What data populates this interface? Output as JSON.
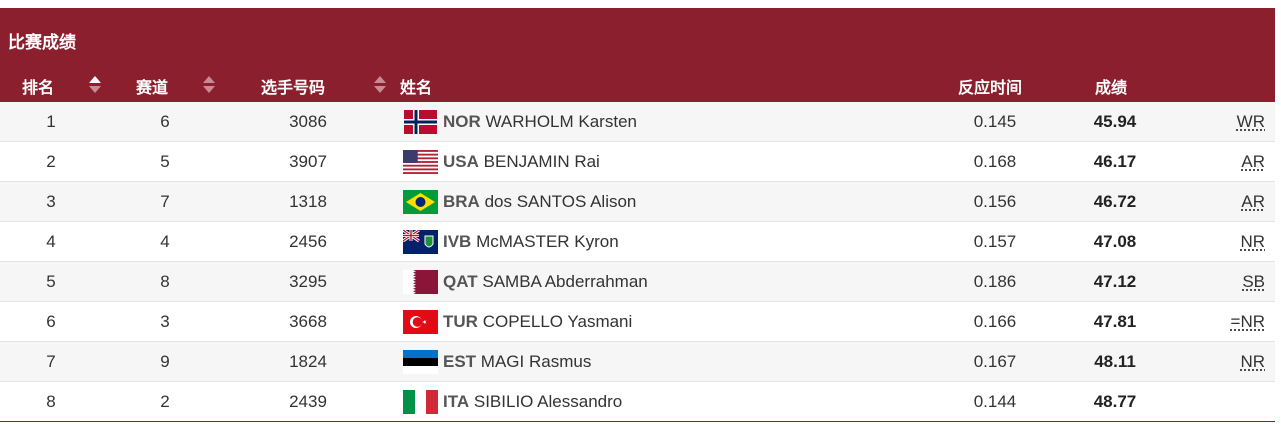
{
  "title": "比赛成绩",
  "columns": {
    "rank": "排名",
    "lane": "赛道",
    "bib": "选手号码",
    "name": "姓名",
    "reaction": "反应时间",
    "result": "成绩"
  },
  "colors": {
    "header_bg": "#8b1f2d",
    "row_alt_bg": "#f6f6f6"
  },
  "rows": [
    {
      "rank": "1",
      "lane": "6",
      "bib": "3086",
      "flag": "norway-flag",
      "country": "NOR",
      "athlete": "WARHOLM Karsten",
      "reaction": "0.145",
      "result": "45.94",
      "record": "WR"
    },
    {
      "rank": "2",
      "lane": "5",
      "bib": "3907",
      "flag": "usa-flag",
      "country": "USA",
      "athlete": "BENJAMIN Rai",
      "reaction": "0.168",
      "result": "46.17",
      "record": "AR"
    },
    {
      "rank": "3",
      "lane": "7",
      "bib": "1318",
      "flag": "brazil-flag",
      "country": "BRA",
      "athlete": "dos SANTOS Alison",
      "reaction": "0.156",
      "result": "46.72",
      "record": "AR"
    },
    {
      "rank": "4",
      "lane": "4",
      "bib": "2456",
      "flag": "british-virgin-islands-flag",
      "country": "IVB",
      "athlete": "McMASTER Kyron",
      "reaction": "0.157",
      "result": "47.08",
      "record": "NR"
    },
    {
      "rank": "5",
      "lane": "8",
      "bib": "3295",
      "flag": "qatar-flag",
      "country": "QAT",
      "athlete": "SAMBA Abderrahman",
      "reaction": "0.186",
      "result": "47.12",
      "record": "SB"
    },
    {
      "rank": "6",
      "lane": "3",
      "bib": "3668",
      "flag": "turkey-flag",
      "country": "TUR",
      "athlete": "COPELLO Yasmani",
      "reaction": "0.166",
      "result": "47.81",
      "record": "=NR"
    },
    {
      "rank": "7",
      "lane": "9",
      "bib": "1824",
      "flag": "estonia-flag",
      "country": "EST",
      "athlete": "MAGI Rasmus",
      "reaction": "0.167",
      "result": "48.11",
      "record": "NR"
    },
    {
      "rank": "8",
      "lane": "2",
      "bib": "2439",
      "flag": "italy-flag",
      "country": "ITA",
      "athlete": "SIBILIO Alessandro",
      "reaction": "0.144",
      "result": "48.77",
      "record": ""
    }
  ]
}
